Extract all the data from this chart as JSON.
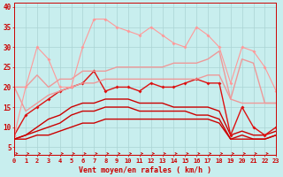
{
  "xlabel": "Vent moyen/en rafales ( km/h )",
  "xlim": [
    0,
    23
  ],
  "ylim": [
    3,
    41
  ],
  "yticks": [
    5,
    10,
    15,
    20,
    25,
    30,
    35,
    40
  ],
  "xticks": [
    0,
    1,
    2,
    3,
    4,
    5,
    6,
    7,
    8,
    9,
    10,
    11,
    12,
    13,
    14,
    15,
    16,
    17,
    18,
    19,
    20,
    21,
    22,
    23
  ],
  "bg_color": "#c8eeee",
  "grid_color": "#aad4d4",
  "series": [
    {
      "y": [
        7,
        7,
        8,
        8,
        9,
        10,
        11,
        11,
        12,
        12,
        12,
        12,
        12,
        12,
        12,
        12,
        12,
        12,
        11,
        7,
        7,
        7,
        7,
        8
      ],
      "color": "#cc0000",
      "lw": 1.0,
      "marker": null
    },
    {
      "y": [
        7,
        8,
        9,
        10,
        11,
        13,
        14,
        14,
        15,
        15,
        15,
        14,
        14,
        14,
        14,
        14,
        13,
        13,
        12,
        7,
        8,
        7,
        7,
        8
      ],
      "color": "#cc0000",
      "lw": 1.0,
      "marker": null
    },
    {
      "y": [
        7,
        8,
        10,
        12,
        13,
        15,
        16,
        16,
        17,
        17,
        17,
        16,
        16,
        16,
        15,
        15,
        15,
        15,
        14,
        8,
        9,
        8,
        8,
        9
      ],
      "color": "#cc0000",
      "lw": 1.0,
      "marker": null
    },
    {
      "y": [
        8,
        13,
        15,
        17,
        19,
        20,
        21,
        24,
        19,
        20,
        20,
        19,
        21,
        20,
        20,
        21,
        22,
        21,
        21,
        8,
        15,
        10,
        8,
        10
      ],
      "color": "#dd1111",
      "lw": 1.0,
      "marker": "D",
      "ms": 2.0
    },
    {
      "y": [
        20,
        14,
        16,
        18,
        19,
        20,
        21,
        21,
        22,
        22,
        22,
        22,
        22,
        22,
        22,
        22,
        22,
        23,
        23,
        17,
        16,
        16,
        16,
        16
      ],
      "color": "#ee9999",
      "lw": 1.0,
      "marker": null
    },
    {
      "y": [
        20,
        20,
        23,
        20,
        22,
        22,
        24,
        24,
        24,
        25,
        25,
        25,
        25,
        25,
        26,
        26,
        26,
        27,
        29,
        17,
        27,
        26,
        16,
        16
      ],
      "color": "#ee9999",
      "lw": 1.0,
      "marker": null
    },
    {
      "y": [
        8,
        20,
        30,
        27,
        20,
        20,
        30,
        37,
        37,
        35,
        34,
        33,
        35,
        33,
        31,
        30,
        35,
        33,
        30,
        21,
        30,
        29,
        25,
        19
      ],
      "color": "#ff9999",
      "lw": 0.8,
      "marker": "D",
      "ms": 2.0
    }
  ]
}
